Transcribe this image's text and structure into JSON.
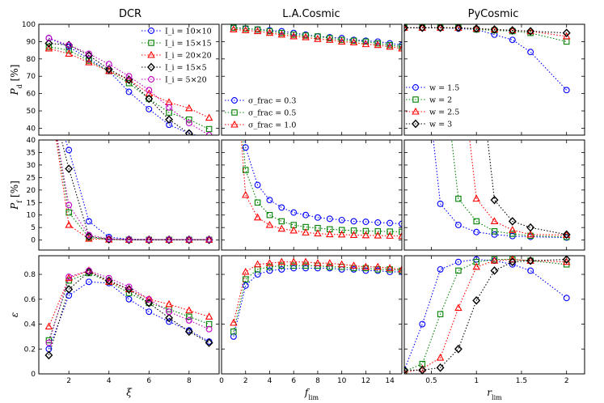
{
  "panel_titles": [
    "DCR",
    "L.A.Cosmic",
    "PyCosmic"
  ],
  "y_labels": [
    "P_d [%]",
    "P_f [%]",
    "ε"
  ],
  "x_labels": [
    "ξ",
    "f_lim",
    "r_lim"
  ],
  "colors": {
    "blue": "#0000ff",
    "green": "#008000",
    "red": "#ff0000",
    "black": "#000000",
    "magenta": "#c000c0"
  },
  "markers": {
    "circle": "o",
    "square": "s",
    "triangle": "^",
    "diamond": "D"
  },
  "chart_data": [
    {
      "type": "line",
      "panel": "DCR-Pd",
      "title": "DCR",
      "xlabel": "",
      "ylabel": "P_d [%]",
      "xlim": [
        0.5,
        9.5
      ],
      "ylim": [
        36,
        100
      ],
      "xticks": [
        2,
        4,
        6,
        8
      ],
      "yticks": [
        40,
        50,
        60,
        70,
        80,
        90,
        100
      ],
      "x": [
        1,
        2,
        3,
        4,
        5,
        6,
        7,
        8,
        9
      ],
      "legend": "top-right",
      "series": [
        {
          "name": "I_i = 10×10",
          "color": "blue",
          "marker": "circle",
          "values": [
            92,
            87,
            80,
            73,
            61,
            51,
            42,
            37,
            34
          ]
        },
        {
          "name": "I_i = 15×15",
          "color": "green",
          "marker": "square",
          "values": [
            87,
            85,
            79,
            73,
            66,
            57,
            49,
            45,
            39.5
          ]
        },
        {
          "name": "I_i = 20×20",
          "color": "red",
          "marker": "triangle",
          "values": [
            86,
            83,
            78,
            73,
            68,
            60,
            55,
            51.5,
            46
          ]
        },
        {
          "name": "I_i = 15×5",
          "color": "black",
          "marker": "diamond",
          "values": [
            89,
            88,
            82,
            74,
            68,
            57,
            45,
            37,
            33
          ]
        },
        {
          "name": "I_i = 5×20",
          "color": "magenta",
          "marker": "circle",
          "values": [
            92,
            88,
            83,
            77,
            70,
            62,
            52,
            43,
            36
          ]
        }
      ]
    },
    {
      "type": "line",
      "panel": "LA-Pd",
      "title": "L.A.Cosmic",
      "xlabel": "",
      "ylabel": "",
      "xlim": [
        0,
        15
      ],
      "ylim": [
        36,
        100
      ],
      "xticks": [
        0,
        2,
        4,
        6,
        8,
        10,
        12,
        14
      ],
      "yticks": [
        40,
        50,
        60,
        70,
        80,
        90,
        100
      ],
      "x": [
        1,
        2,
        3,
        4,
        5,
        6,
        7,
        8,
        9,
        10,
        11,
        12,
        13,
        14,
        15
      ],
      "legend": "lower-left",
      "series": [
        {
          "name": "σ_frac = 0.3",
          "color": "blue",
          "marker": "circle",
          "values": [
            98,
            97.5,
            97,
            96.5,
            96,
            95,
            94,
            93,
            92.5,
            92,
            91,
            90.5,
            90,
            89,
            88
          ]
        },
        {
          "name": "σ_frac = 0.5",
          "color": "green",
          "marker": "square",
          "values": [
            98,
            97.5,
            97,
            96,
            95,
            94,
            93.5,
            93,
            92,
            91,
            90.5,
            90,
            89,
            88,
            87
          ]
        },
        {
          "name": "σ_frac = 1.0",
          "color": "red",
          "marker": "triangle",
          "values": [
            97,
            96.5,
            96,
            95,
            94,
            93,
            92.5,
            91.5,
            91,
            90,
            89.5,
            88.5,
            88,
            87,
            86
          ]
        }
      ]
    },
    {
      "type": "line",
      "panel": "Py-Pd",
      "title": "PyCosmic",
      "xlabel": "",
      "ylabel": "",
      "xlim": [
        0.2,
        2.2
      ],
      "ylim": [
        36,
        100
      ],
      "xticks": [
        0.5,
        1.0,
        1.5,
        2.0
      ],
      "yticks": [
        40,
        50,
        60,
        70,
        80,
        90,
        100
      ],
      "legend": "lower-left",
      "series": [
        {
          "name": "w = 1.5",
          "color": "blue",
          "marker": "circle",
          "x": [
            0.2,
            0.4,
            0.6,
            0.8,
            1.0,
            1.2,
            1.4,
            1.6,
            2.0
          ],
          "values": [
            98,
            98,
            98,
            97.5,
            97,
            94,
            91,
            84,
            62
          ]
        },
        {
          "name": "w = 2",
          "color": "green",
          "marker": "square",
          "x": [
            0.2,
            0.4,
            0.6,
            0.8,
            1.0,
            1.2,
            1.4,
            1.6,
            2.0
          ],
          "values": [
            98,
            98,
            98,
            98,
            97,
            96.5,
            96,
            95,
            90
          ]
        },
        {
          "name": "w = 2.5",
          "color": "red",
          "marker": "triangle",
          "x": [
            0.2,
            0.4,
            0.6,
            0.8,
            1.0,
            1.2,
            1.4,
            1.6,
            2.0
          ],
          "values": [
            98,
            98,
            98,
            98,
            97.5,
            97,
            96.5,
            96,
            93
          ]
        },
        {
          "name": "w = 3",
          "color": "black",
          "marker": "diamond",
          "x": [
            0.2,
            0.4,
            0.6,
            0.8,
            1.0,
            1.2,
            1.4,
            1.6,
            2.0
          ],
          "values": [
            98,
            98,
            98,
            98,
            97.5,
            97,
            96.5,
            96,
            95
          ]
        }
      ]
    },
    {
      "type": "line",
      "panel": "DCR-Pf",
      "xlabel": "",
      "ylabel": "P_f [%]",
      "xlim": [
        0.5,
        9.5
      ],
      "ylim": [
        -4,
        40
      ],
      "xticks": [
        2,
        4,
        6,
        8
      ],
      "yticks": [
        0,
        5,
        10,
        15,
        20,
        25,
        30,
        35,
        40
      ],
      "x": [
        1,
        2,
        3,
        4,
        5,
        6,
        7,
        8,
        9
      ],
      "series": [
        {
          "name": "I_i = 10×10",
          "color": "blue",
          "marker": "circle",
          "values": [
            60,
            36,
            7.5,
            1.2,
            0.3,
            0.2,
            0.2,
            0.2,
            0.2
          ]
        },
        {
          "name": "I_i = 15×15",
          "color": "green",
          "marker": "square",
          "values": [
            60,
            11,
            1,
            0.3,
            0.1,
            0.1,
            0.1,
            0.1,
            0.1
          ]
        },
        {
          "name": "I_i = 20×20",
          "color": "red",
          "marker": "triangle",
          "values": [
            60,
            6,
            0.5,
            0.2,
            0.1,
            0.1,
            0.1,
            0.1,
            0.1
          ]
        },
        {
          "name": "I_i = 15×5",
          "color": "black",
          "marker": "diamond",
          "values": [
            60,
            28.5,
            1.5,
            0.3,
            0.1,
            0.1,
            0.1,
            0.1,
            0.1
          ]
        },
        {
          "name": "I_i = 5×20",
          "color": "magenta",
          "marker": "circle",
          "values": [
            60,
            14,
            2,
            0.5,
            0.2,
            0.2,
            0.2,
            0.2,
            0.2
          ]
        }
      ]
    },
    {
      "type": "line",
      "panel": "LA-Pf",
      "xlabel": "",
      "ylabel": "",
      "xlim": [
        0,
        15
      ],
      "ylim": [
        -4,
        40
      ],
      "xticks": [
        0,
        2,
        4,
        6,
        8,
        10,
        12,
        14
      ],
      "yticks": [
        0,
        5,
        10,
        15,
        20,
        25,
        30,
        35,
        40
      ],
      "x": [
        1,
        2,
        3,
        4,
        5,
        6,
        7,
        8,
        9,
        10,
        11,
        12,
        13,
        14,
        15
      ],
      "series": [
        {
          "name": "σ_frac = 0.3",
          "color": "blue",
          "marker": "circle",
          "values": [
            80,
            37,
            22,
            16,
            13,
            11,
            10,
            9,
            8.5,
            8,
            7.5,
            7.3,
            7,
            6.8,
            6.5
          ]
        },
        {
          "name": "σ_frac = 0.5",
          "color": "green",
          "marker": "square",
          "values": [
            80,
            28,
            15,
            10,
            7.5,
            6,
            5.2,
            4.8,
            4.3,
            4,
            3.8,
            3.6,
            3.5,
            3.4,
            3.3
          ]
        },
        {
          "name": "σ_frac = 1.0",
          "color": "red",
          "marker": "triangle",
          "values": [
            80,
            18,
            9,
            6,
            4.5,
            3.8,
            3,
            2.6,
            2.3,
            2.2,
            2,
            1.9,
            1.8,
            1.7,
            1.6
          ]
        }
      ]
    },
    {
      "type": "line",
      "panel": "Py-Pf",
      "xlabel": "",
      "ylabel": "",
      "xlim": [
        0.2,
        2.2
      ],
      "ylim": [
        -4,
        40
      ],
      "xticks": [
        0.5,
        1.0,
        1.5,
        2.0
      ],
      "yticks": [
        0,
        5,
        10,
        15,
        20,
        25,
        30,
        35,
        40
      ],
      "series": [
        {
          "name": "w = 1.5",
          "color": "blue",
          "marker": "circle",
          "x": [
            0.4,
            0.6,
            0.8,
            1.0,
            1.2,
            1.4,
            1.6,
            2.0
          ],
          "values": [
            80,
            14.5,
            6,
            3.2,
            2.2,
            1.6,
            1.3,
            1
          ]
        },
        {
          "name": "w = 2",
          "color": "green",
          "marker": "square",
          "x": [
            0.6,
            0.8,
            1.0,
            1.2,
            1.4,
            1.6,
            2.0
          ],
          "values": [
            80,
            16.5,
            7.5,
            3.5,
            2.5,
            1.7,
            1.2
          ]
        },
        {
          "name": "w = 2.5",
          "color": "red",
          "marker": "triangle",
          "x": [
            0.8,
            1.0,
            1.2,
            1.4,
            1.6,
            2.0
          ],
          "values": [
            80,
            16.5,
            7.5,
            4,
            2.2,
            2
          ]
        },
        {
          "name": "w = 3",
          "color": "black",
          "marker": "diamond",
          "x": [
            1.0,
            1.2,
            1.4,
            1.6,
            2.0
          ],
          "values": [
            80,
            16,
            7.5,
            5,
            2.2
          ]
        }
      ]
    },
    {
      "type": "line",
      "panel": "DCR-eps",
      "xlabel": "ξ",
      "ylabel": "ε",
      "xlim": [
        0.5,
        9.5
      ],
      "ylim": [
        0,
        0.95
      ],
      "xticks": [
        2,
        4,
        6,
        8
      ],
      "yticks": [
        0.0,
        0.2,
        0.4,
        0.6,
        0.8
      ],
      "x": [
        1,
        2,
        3,
        4,
        5,
        6,
        7,
        8,
        9
      ],
      "series": [
        {
          "name": "I_i = 10×10",
          "color": "blue",
          "marker": "circle",
          "values": [
            0.2,
            0.63,
            0.74,
            0.73,
            0.6,
            0.5,
            0.42,
            0.35,
            0.26
          ]
        },
        {
          "name": "I_i = 15×15",
          "color": "green",
          "marker": "square",
          "values": [
            0.27,
            0.75,
            0.81,
            0.74,
            0.65,
            0.57,
            0.52,
            0.46,
            0.4
          ]
        },
        {
          "name": "I_i = 20×20",
          "color": "red",
          "marker": "triangle",
          "values": [
            0.38,
            0.77,
            0.83,
            0.74,
            0.68,
            0.6,
            0.56,
            0.51,
            0.46
          ]
        },
        {
          "name": "I_i = 15×5",
          "color": "black",
          "marker": "diamond",
          "values": [
            0.15,
            0.68,
            0.82,
            0.75,
            0.68,
            0.57,
            0.45,
            0.34,
            0.25
          ]
        },
        {
          "name": "I_i = 5×20",
          "color": "magenta",
          "marker": "circle",
          "values": [
            0.25,
            0.78,
            0.83,
            0.77,
            0.7,
            0.6,
            0.5,
            0.43,
            0.36
          ]
        }
      ]
    },
    {
      "type": "line",
      "panel": "LA-eps",
      "xlabel": "f_lim",
      "ylabel": "",
      "xlim": [
        0,
        15
      ],
      "ylim": [
        0,
        0.95
      ],
      "xticks": [
        0,
        2,
        4,
        6,
        8,
        10,
        12,
        14
      ],
      "yticks": [
        0.0,
        0.2,
        0.4,
        0.6,
        0.8
      ],
      "x": [
        1,
        2,
        3,
        4,
        5,
        6,
        7,
        8,
        9,
        10,
        11,
        12,
        13,
        14,
        15
      ],
      "series": [
        {
          "name": "σ_frac = 0.3",
          "color": "blue",
          "marker": "circle",
          "values": [
            0.3,
            0.71,
            0.8,
            0.83,
            0.84,
            0.85,
            0.85,
            0.85,
            0.85,
            0.84,
            0.84,
            0.83,
            0.83,
            0.82,
            0.82
          ]
        },
        {
          "name": "σ_frac = 0.5",
          "color": "green",
          "marker": "square",
          "values": [
            0.34,
            0.76,
            0.84,
            0.86,
            0.87,
            0.87,
            0.87,
            0.87,
            0.86,
            0.86,
            0.85,
            0.85,
            0.84,
            0.84,
            0.83
          ]
        },
        {
          "name": "σ_frac = 1.0",
          "color": "red",
          "marker": "triangle",
          "values": [
            0.41,
            0.82,
            0.88,
            0.89,
            0.9,
            0.9,
            0.9,
            0.89,
            0.89,
            0.88,
            0.87,
            0.86,
            0.86,
            0.85,
            0.84
          ]
        }
      ]
    },
    {
      "type": "line",
      "panel": "Py-eps",
      "xlabel": "r_lim",
      "ylabel": "",
      "xlim": [
        0.2,
        2.2
      ],
      "ylim": [
        0,
        0.95
      ],
      "xticks": [
        0.5,
        1.0,
        1.5,
        2.0
      ],
      "yticks": [
        0.0,
        0.2,
        0.4,
        0.6,
        0.8
      ],
      "series": [
        {
          "name": "w = 1.5",
          "color": "blue",
          "marker": "circle",
          "x": [
            0.2,
            0.4,
            0.6,
            0.8,
            1.0,
            1.2,
            1.4,
            1.6,
            2.0
          ],
          "values": [
            0.03,
            0.4,
            0.84,
            0.9,
            0.92,
            0.91,
            0.88,
            0.83,
            0.61
          ]
        },
        {
          "name": "w = 2",
          "color": "green",
          "marker": "square",
          "x": [
            0.2,
            0.4,
            0.6,
            0.8,
            1.0,
            1.2,
            1.4,
            1.6,
            2.0
          ],
          "values": [
            0.02,
            0.08,
            0.48,
            0.83,
            0.9,
            0.92,
            0.92,
            0.91,
            0.88
          ]
        },
        {
          "name": "w = 2.5",
          "color": "red",
          "marker": "triangle",
          "x": [
            0.2,
            0.4,
            0.6,
            0.8,
            1.0,
            1.2,
            1.4,
            1.6,
            2.0
          ],
          "values": [
            0.01,
            0.04,
            0.13,
            0.53,
            0.86,
            0.91,
            0.92,
            0.91,
            0.9
          ]
        },
        {
          "name": "w = 3",
          "color": "black",
          "marker": "diamond",
          "x": [
            0.2,
            0.4,
            0.6,
            0.8,
            1.0,
            1.2,
            1.4,
            1.6,
            2.0
          ],
          "values": [
            0.03,
            0.03,
            0.05,
            0.2,
            0.59,
            0.83,
            0.9,
            0.91,
            0.92
          ]
        }
      ]
    }
  ]
}
